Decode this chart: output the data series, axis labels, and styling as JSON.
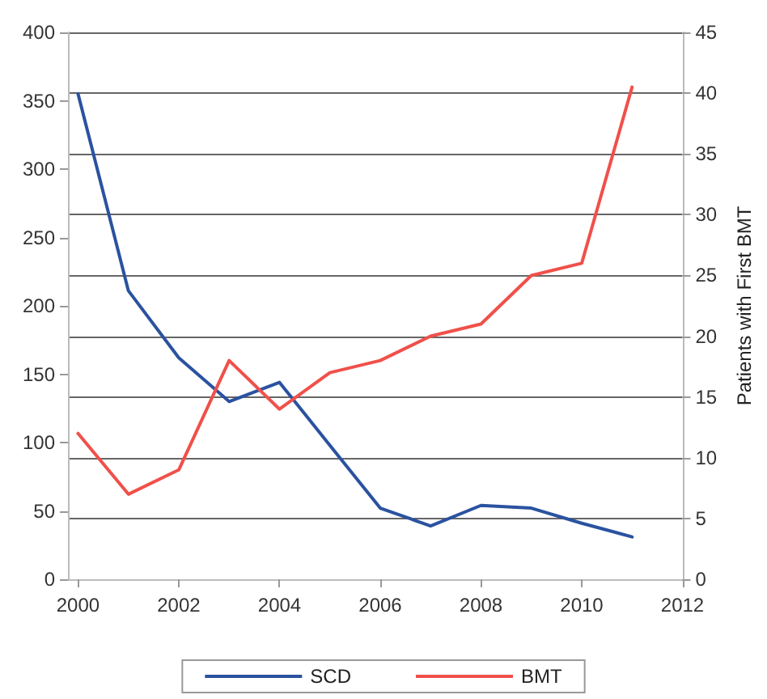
{
  "chart_data": {
    "type": "line",
    "y2label": "Patients with First BMT",
    "x": [
      2000,
      2001,
      2002,
      2003,
      2004,
      2005,
      2006,
      2007,
      2008,
      2009,
      2010,
      2011
    ],
    "series": [
      {
        "name": "SCD",
        "color": "#2a52a0",
        "values": [
          355,
          211,
          162,
          130,
          144,
          98,
          52,
          39,
          54,
          52,
          41,
          31
        ]
      },
      {
        "name": "BMT",
        "color": "#f0504a",
        "axis": "y2",
        "values": [
          12,
          7,
          9,
          18,
          14,
          17,
          18,
          20,
          21,
          25,
          26,
          40.5
        ]
      }
    ],
    "xlim": [
      1999.8,
      2012
    ],
    "xticks": [
      2000,
      2002,
      2004,
      2006,
      2008,
      2010,
      2012
    ],
    "ylim": [
      0,
      400
    ],
    "yticks": [
      0,
      50,
      100,
      150,
      200,
      250,
      300,
      350,
      400
    ],
    "y2lim": [
      0,
      45
    ],
    "y2ticks": [
      0,
      5,
      10,
      15,
      20,
      25,
      30,
      35,
      40,
      45
    ],
    "grid": "y2",
    "legend": "bottom",
    "marker": "none",
    "line_style": "solid"
  }
}
